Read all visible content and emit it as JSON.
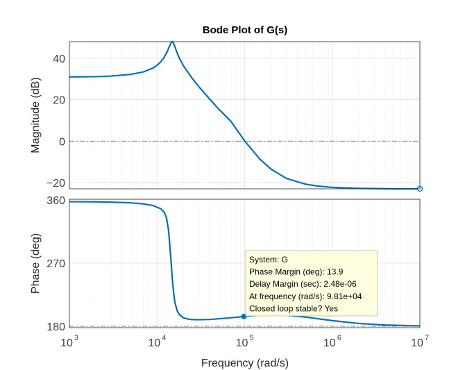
{
  "chart_data": {
    "type": "line",
    "title": "Bode Plot of G(s)",
    "xlabel": "Frequency  (rad/s)",
    "x_scale": "log",
    "xlim": [
      1000,
      10000000
    ],
    "x_ticks": [
      {
        "value": 1000,
        "base": "10",
        "exp": "3"
      },
      {
        "value": 10000,
        "base": "10",
        "exp": "4"
      },
      {
        "value": 100000,
        "base": "10",
        "exp": "5"
      },
      {
        "value": 1000000,
        "base": "10",
        "exp": "6"
      },
      {
        "value": 10000000,
        "base": "10",
        "exp": "7"
      }
    ],
    "grid": true,
    "line_color": "#0072BD",
    "ref_line_color": "#808080",
    "subplots": [
      {
        "ylabel": "Magnitude (dB)",
        "ylim": [
          -23,
          48
        ],
        "yticks": [
          -20,
          0,
          20,
          40
        ],
        "ref_y": 0,
        "series": [
          {
            "x": [
              1000,
              2000,
              3000,
              5000,
              7000,
              9000,
              10000,
              11000,
              12000,
              13000,
              13800,
              14500,
              15000,
              15500,
              16000,
              17000,
              18000,
              20000,
              25000,
              30000,
              40000,
              50000,
              70000,
              100000,
              150000,
              200000,
              300000,
              500000,
              700000,
              1000000,
              2000000,
              5000000,
              10000000
            ],
            "y": [
              31,
              31.1,
              31.4,
              32.2,
              33.4,
              35.3,
              36.6,
              38.2,
              40.3,
              43,
              45.5,
              47.6,
              48,
              47,
              45.5,
              42.5,
              40,
              36.4,
              30.5,
              26.3,
              20.2,
              15.7,
              9.5,
              0.1,
              -8.8,
              -13.5,
              -18,
              -20.8,
              -21.7,
              -22.3,
              -22.8,
              -23,
              -23
            ]
          }
        ]
      },
      {
        "ylabel": "Phase (deg)",
        "ylim": [
          178,
          361
        ],
        "yticks": [
          180,
          270,
          360
        ],
        "ref_y": 180,
        "series": [
          {
            "x": [
              1000,
              2000,
              3000,
              5000,
              7000,
              9000,
              11000,
              12000,
              12800,
              13500,
              14000,
              14500,
              15000,
              15500,
              16000,
              17000,
              18000,
              20000,
              23000,
              26000,
              30000,
              40000,
              60000,
              80000,
              98100,
              130000,
              200000,
              300000,
              500000,
              1000000,
              2000000,
              4000000,
              10000000
            ],
            "y": [
              357.5,
              357.3,
              356.8,
              355.9,
              354.4,
              352,
              347.5,
              343,
              335,
              318,
              295,
              270,
              245,
              227,
              214,
              202,
              196.5,
              192,
              190,
              189.5,
              189.3,
              189.7,
              191.4,
              192.8,
              193.9,
              195.2,
              196,
              195.4,
              193,
              188,
              184,
              181.7,
              180.5
            ]
          }
        ]
      }
    ],
    "marker": {
      "x": 98100,
      "y": 193.9
    },
    "datatip": {
      "lines": [
        "System: G",
        "Phase Margin (deg): 13.9",
        "Delay Margin (sec): 2.48e-06",
        "At frequency (rad/s): 9.81e+04",
        "Closed loop stable? Yes"
      ]
    }
  }
}
